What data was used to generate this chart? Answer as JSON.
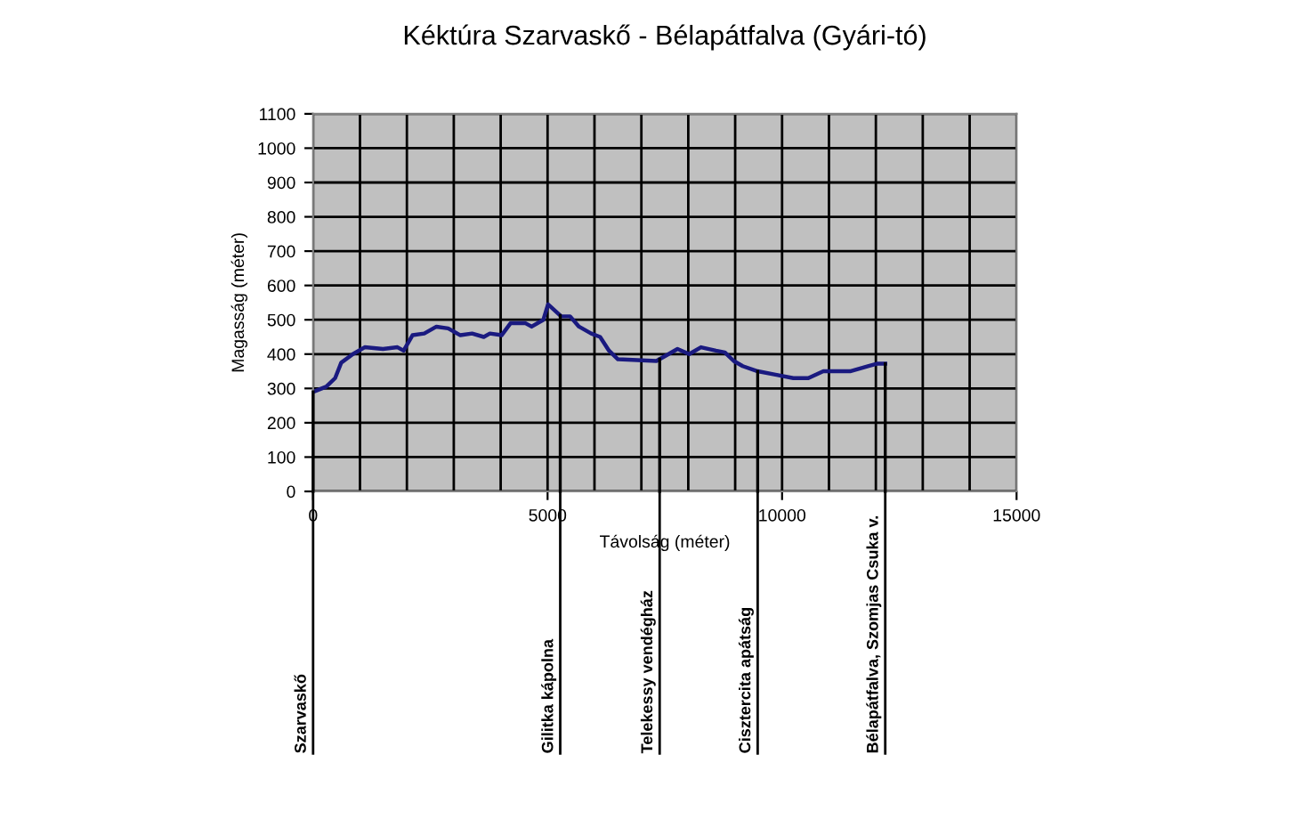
{
  "chart_data": {
    "type": "line",
    "title": "Kéktúra Szarvaskő - Bélapátfalva (Gyári-tó)",
    "xlabel": "Távolság (méter)",
    "ylabel": "Magasság (méter)",
    "x": [
      0,
      280,
      470,
      600,
      850,
      1100,
      1490,
      1800,
      1930,
      2120,
      2370,
      2630,
      2880,
      3140,
      3390,
      3640,
      3770,
      4020,
      4210,
      4530,
      4660,
      4910,
      5010,
      5290,
      5480,
      5670,
      5930,
      6120,
      6310,
      6500,
      7320,
      7580,
      7770,
      8020,
      8270,
      8590,
      8780,
      8970,
      9160,
      9480,
      9860,
      10240,
      10560,
      10880,
      11450,
      11830,
      12020,
      12200
    ],
    "series": [
      {
        "color": "#1a1a80",
        "values": [
          290,
          305,
          330,
          375,
          400,
          420,
          415,
          420,
          410,
          455,
          460,
          480,
          475,
          455,
          460,
          450,
          460,
          455,
          490,
          490,
          480,
          500,
          545,
          510,
          510,
          480,
          460,
          450,
          410,
          385,
          380,
          400,
          415,
          400,
          420,
          410,
          405,
          380,
          365,
          350,
          340,
          330,
          330,
          350,
          350,
          365,
          372,
          372
        ]
      }
    ],
    "xlim": [
      0,
      15000
    ],
    "xticks": [
      0,
      5000,
      10000,
      15000
    ],
    "ylim": [
      0,
      1100
    ],
    "yticks": [
      0,
      100,
      200,
      300,
      400,
      500,
      600,
      700,
      800,
      900,
      1000,
      1100
    ],
    "grid": true,
    "marker": "none",
    "line_style": "solid",
    "ref_lines": [
      {
        "axis": "x",
        "value": 0,
        "label": "Szarvaskő"
      },
      {
        "axis": "x",
        "value": 5270,
        "label": "Gilitka kápolna"
      },
      {
        "axis": "x",
        "value": 7390,
        "label": "Telekessy vendégház"
      },
      {
        "axis": "x",
        "value": 9480,
        "label": "Cisztercita apátság"
      },
      {
        "axis": "x",
        "value": 12200,
        "label": "Bélapátfalva, Szomjas Csuka v."
      }
    ]
  }
}
